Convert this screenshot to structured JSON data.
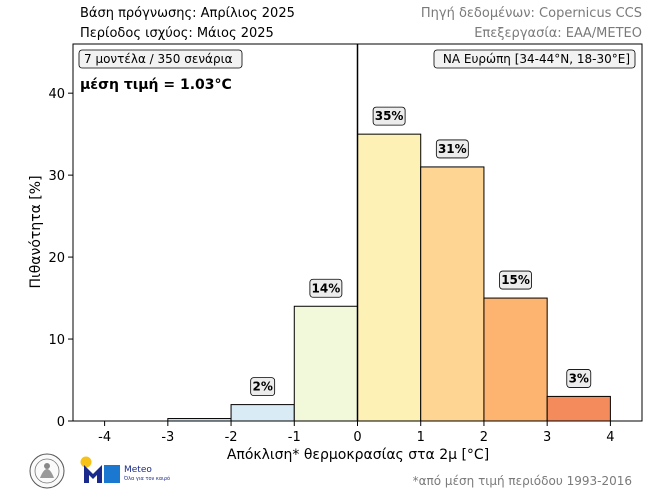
{
  "header": {
    "forecast_base": "Βάση πρόγνωσης: Απρίλιος 2025",
    "validity_period": "Περίοδος ισχύος: Μάιος 2025",
    "data_source": "Πηγή δεδομένων: Copernicus CCS",
    "processing": "Επεξεργασία: ΕΑΑ/METEO"
  },
  "footnote": "*από μέση τιμή περιόδου 1993-2016",
  "logos": {
    "meteo_word": "Meteo",
    "meteo_tagline": "Όλα για τον καιρό"
  },
  "colors": {
    "frame": "#000000",
    "bar_edge": "#000000"
  },
  "chart_data": {
    "type": "bar",
    "title": "",
    "xlabel": "Απόκλιση* θερμοκρασίας στα 2μ [°C]",
    "ylabel": "Πιθανότητα [%]",
    "xlim": [
      -4.5,
      4.5
    ],
    "ylim": [
      0,
      46
    ],
    "xticks": [
      -4,
      -3,
      -2,
      -1,
      0,
      1,
      2,
      3,
      4
    ],
    "yticks": [
      0,
      10,
      20,
      30,
      40
    ],
    "grid": false,
    "bins": [
      {
        "from": -4,
        "to": -3,
        "value": 0,
        "label": "",
        "color": "#ffffff"
      },
      {
        "from": -3,
        "to": -2,
        "value": 0.3,
        "label": "",
        "color": "#d6eaf4"
      },
      {
        "from": -2,
        "to": -1,
        "value": 2,
        "label": "2%",
        "color": "#d9ecf6"
      },
      {
        "from": -1,
        "to": 0,
        "value": 14,
        "label": "14%",
        "color": "#f2f8da"
      },
      {
        "from": 0,
        "to": 1,
        "value": 35,
        "label": "35%",
        "color": "#fdf1b5"
      },
      {
        "from": 1,
        "to": 2,
        "value": 31,
        "label": "31%",
        "color": "#fed593"
      },
      {
        "from": 2,
        "to": 3,
        "value": 15,
        "label": "15%",
        "color": "#fdb471"
      },
      {
        "from": 3,
        "to": 4,
        "value": 3,
        "label": "3%",
        "color": "#f38b5d"
      }
    ],
    "zero_line_x": 0,
    "annotations": {
      "models": "7 μοντέλα / 350 σενάρια",
      "mean": "μέση τιμή = 1.03°C",
      "region": "ΝΑ Ευρώπη [34-44°N, 18-30°E]"
    }
  }
}
